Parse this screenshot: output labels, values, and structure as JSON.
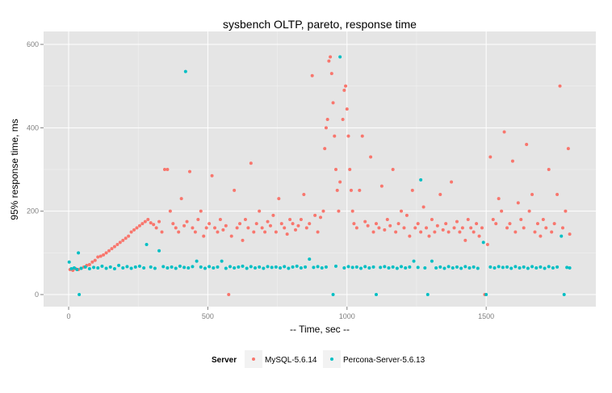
{
  "chart_data": {
    "type": "scatter",
    "title": "sysbench OLTP, pareto, response time",
    "xlabel": "-- Time, sec --",
    "ylabel": "95% response time, ms",
    "xlim": [
      -90,
      1894
    ],
    "ylim": [
      -29,
      631
    ],
    "xticks": [
      0,
      500,
      1000,
      1500
    ],
    "yticks": [
      0,
      200,
      400,
      600
    ],
    "grid": true,
    "legend": {
      "title": "Server",
      "position": "bottom"
    },
    "series": [
      {
        "name": "MySQL-5.6.14",
        "color": "#F8766D",
        "points": [
          [
            5,
            60
          ],
          [
            15,
            58
          ],
          [
            25,
            62
          ],
          [
            35,
            60
          ],
          [
            45,
            63
          ],
          [
            55,
            66
          ],
          [
            65,
            70
          ],
          [
            75,
            72
          ],
          [
            85,
            78
          ],
          [
            95,
            82
          ],
          [
            105,
            90
          ],
          [
            115,
            92
          ],
          [
            125,
            95
          ],
          [
            135,
            100
          ],
          [
            145,
            105
          ],
          [
            155,
            110
          ],
          [
            165,
            115
          ],
          [
            175,
            120
          ],
          [
            185,
            125
          ],
          [
            195,
            130
          ],
          [
            205,
            135
          ],
          [
            215,
            140
          ],
          [
            225,
            150
          ],
          [
            235,
            155
          ],
          [
            245,
            160
          ],
          [
            255,
            165
          ],
          [
            265,
            170
          ],
          [
            275,
            175
          ],
          [
            285,
            180
          ],
          [
            295,
            172
          ],
          [
            305,
            168
          ],
          [
            315,
            160
          ],
          [
            325,
            175
          ],
          [
            335,
            150
          ],
          [
            345,
            300
          ],
          [
            355,
            300
          ],
          [
            365,
            200
          ],
          [
            375,
            170
          ],
          [
            385,
            160
          ],
          [
            395,
            150
          ],
          [
            405,
            230
          ],
          [
            415,
            165
          ],
          [
            425,
            175
          ],
          [
            435,
            295
          ],
          [
            445,
            160
          ],
          [
            455,
            150
          ],
          [
            465,
            180
          ],
          [
            475,
            200
          ],
          [
            485,
            140
          ],
          [
            495,
            160
          ],
          [
            505,
            170
          ],
          [
            515,
            285
          ],
          [
            525,
            160
          ],
          [
            535,
            150
          ],
          [
            545,
            180
          ],
          [
            555,
            155
          ],
          [
            565,
            165
          ],
          [
            575,
            0
          ],
          [
            585,
            140
          ],
          [
            595,
            250
          ],
          [
            605,
            160
          ],
          [
            615,
            170
          ],
          [
            625,
            130
          ],
          [
            635,
            180
          ],
          [
            645,
            160
          ],
          [
            655,
            315
          ],
          [
            665,
            150
          ],
          [
            675,
            170
          ],
          [
            685,
            200
          ],
          [
            695,
            160
          ],
          [
            705,
            150
          ],
          [
            715,
            175
          ],
          [
            725,
            165
          ],
          [
            735,
            190
          ],
          [
            745,
            150
          ],
          [
            755,
            230
          ],
          [
            765,
            170
          ],
          [
            775,
            160
          ],
          [
            785,
            145
          ],
          [
            795,
            180
          ],
          [
            805,
            170
          ],
          [
            815,
            155
          ],
          [
            825,
            165
          ],
          [
            835,
            180
          ],
          [
            845,
            240
          ],
          [
            855,
            160
          ],
          [
            865,
            170
          ],
          [
            875,
            525
          ],
          [
            885,
            190
          ],
          [
            895,
            150
          ],
          [
            905,
            185
          ],
          [
            915,
            200
          ],
          [
            920,
            350
          ],
          [
            925,
            400
          ],
          [
            930,
            420
          ],
          [
            935,
            560
          ],
          [
            940,
            570
          ],
          [
            945,
            530
          ],
          [
            950,
            460
          ],
          [
            955,
            380
          ],
          [
            960,
            300
          ],
          [
            965,
            250
          ],
          [
            970,
            200
          ],
          [
            975,
            270
          ],
          [
            985,
            420
          ],
          [
            990,
            490
          ],
          [
            995,
            500
          ],
          [
            1000,
            445
          ],
          [
            1005,
            380
          ],
          [
            1010,
            300
          ],
          [
            1015,
            250
          ],
          [
            1020,
            200
          ],
          [
            1025,
            170
          ],
          [
            1035,
            160
          ],
          [
            1045,
            250
          ],
          [
            1055,
            380
          ],
          [
            1065,
            175
          ],
          [
            1075,
            165
          ],
          [
            1085,
            330
          ],
          [
            1095,
            150
          ],
          [
            1105,
            170
          ],
          [
            1115,
            160
          ],
          [
            1125,
            260
          ],
          [
            1135,
            155
          ],
          [
            1145,
            180
          ],
          [
            1155,
            165
          ],
          [
            1165,
            300
          ],
          [
            1175,
            150
          ],
          [
            1185,
            170
          ],
          [
            1195,
            200
          ],
          [
            1205,
            160
          ],
          [
            1215,
            190
          ],
          [
            1225,
            140
          ],
          [
            1235,
            250
          ],
          [
            1245,
            160
          ],
          [
            1255,
            170
          ],
          [
            1265,
            150
          ],
          [
            1275,
            210
          ],
          [
            1285,
            160
          ],
          [
            1295,
            140
          ],
          [
            1305,
            180
          ],
          [
            1315,
            150
          ],
          [
            1325,
            165
          ],
          [
            1335,
            240
          ],
          [
            1345,
            155
          ],
          [
            1355,
            170
          ],
          [
            1365,
            150
          ],
          [
            1375,
            270
          ],
          [
            1385,
            160
          ],
          [
            1395,
            175
          ],
          [
            1405,
            150
          ],
          [
            1415,
            160
          ],
          [
            1425,
            130
          ],
          [
            1435,
            180
          ],
          [
            1445,
            160
          ],
          [
            1455,
            150
          ],
          [
            1465,
            170
          ],
          [
            1475,
            140
          ],
          [
            1485,
            160
          ],
          [
            1495,
            0
          ],
          [
            1505,
            120
          ],
          [
            1515,
            330
          ],
          [
            1525,
            180
          ],
          [
            1535,
            170
          ],
          [
            1545,
            230
          ],
          [
            1555,
            200
          ],
          [
            1565,
            390
          ],
          [
            1575,
            160
          ],
          [
            1585,
            170
          ],
          [
            1595,
            320
          ],
          [
            1605,
            150
          ],
          [
            1615,
            220
          ],
          [
            1625,
            180
          ],
          [
            1635,
            160
          ],
          [
            1645,
            360
          ],
          [
            1655,
            200
          ],
          [
            1665,
            240
          ],
          [
            1675,
            150
          ],
          [
            1685,
            170
          ],
          [
            1695,
            140
          ],
          [
            1705,
            180
          ],
          [
            1715,
            160
          ],
          [
            1725,
            300
          ],
          [
            1735,
            150
          ],
          [
            1745,
            170
          ],
          [
            1755,
            240
          ],
          [
            1765,
            500
          ],
          [
            1775,
            160
          ],
          [
            1785,
            200
          ],
          [
            1795,
            350
          ],
          [
            1800,
            145
          ]
        ]
      },
      {
        "name": "Percona-Server-5.6.13",
        "color": "#00BFC4",
        "points": [
          [
            2,
            78
          ],
          [
            10,
            62
          ],
          [
            20,
            64
          ],
          [
            30,
            60
          ],
          [
            35,
            100
          ],
          [
            38,
            0
          ],
          [
            45,
            63
          ],
          [
            60,
            66
          ],
          [
            75,
            62
          ],
          [
            90,
            65
          ],
          [
            105,
            64
          ],
          [
            120,
            68
          ],
          [
            135,
            63
          ],
          [
            150,
            66
          ],
          [
            165,
            62
          ],
          [
            180,
            70
          ],
          [
            195,
            64
          ],
          [
            210,
            67
          ],
          [
            225,
            63
          ],
          [
            240,
            66
          ],
          [
            255,
            68
          ],
          [
            270,
            64
          ],
          [
            280,
            120
          ],
          [
            295,
            66
          ],
          [
            310,
            63
          ],
          [
            325,
            105
          ],
          [
            340,
            67
          ],
          [
            355,
            64
          ],
          [
            370,
            66
          ],
          [
            385,
            63
          ],
          [
            400,
            68
          ],
          [
            415,
            65
          ],
          [
            420,
            535
          ],
          [
            430,
            64
          ],
          [
            445,
            67
          ],
          [
            460,
            80
          ],
          [
            475,
            66
          ],
          [
            490,
            63
          ],
          [
            505,
            67
          ],
          [
            520,
            64
          ],
          [
            535,
            66
          ],
          [
            550,
            80
          ],
          [
            565,
            63
          ],
          [
            580,
            67
          ],
          [
            595,
            64
          ],
          [
            610,
            66
          ],
          [
            625,
            68
          ],
          [
            640,
            63
          ],
          [
            655,
            67
          ],
          [
            670,
            64
          ],
          [
            685,
            66
          ],
          [
            700,
            63
          ],
          [
            715,
            67
          ],
          [
            730,
            65
          ],
          [
            745,
            66
          ],
          [
            760,
            64
          ],
          [
            775,
            67
          ],
          [
            790,
            63
          ],
          [
            805,
            66
          ],
          [
            820,
            68
          ],
          [
            835,
            64
          ],
          [
            850,
            66
          ],
          [
            865,
            85
          ],
          [
            880,
            65
          ],
          [
            895,
            67
          ],
          [
            910,
            64
          ],
          [
            925,
            66
          ],
          [
            950,
            0
          ],
          [
            960,
            68
          ],
          [
            975,
            570
          ],
          [
            990,
            64
          ],
          [
            1005,
            67
          ],
          [
            1020,
            65
          ],
          [
            1035,
            66
          ],
          [
            1050,
            63
          ],
          [
            1065,
            67
          ],
          [
            1080,
            64
          ],
          [
            1095,
            66
          ],
          [
            1105,
            0
          ],
          [
            1120,
            65
          ],
          [
            1135,
            67
          ],
          [
            1150,
            64
          ],
          [
            1165,
            66
          ],
          [
            1180,
            63
          ],
          [
            1195,
            67
          ],
          [
            1210,
            64
          ],
          [
            1225,
            66
          ],
          [
            1240,
            80
          ],
          [
            1255,
            65
          ],
          [
            1265,
            275
          ],
          [
            1280,
            64
          ],
          [
            1290,
            0
          ],
          [
            1305,
            80
          ],
          [
            1320,
            64
          ],
          [
            1335,
            66
          ],
          [
            1350,
            63
          ],
          [
            1365,
            67
          ],
          [
            1380,
            64
          ],
          [
            1395,
            66
          ],
          [
            1410,
            63
          ],
          [
            1425,
            67
          ],
          [
            1440,
            64
          ],
          [
            1455,
            66
          ],
          [
            1470,
            63
          ],
          [
            1490,
            125
          ],
          [
            1500,
            0
          ],
          [
            1515,
            66
          ],
          [
            1530,
            64
          ],
          [
            1545,
            67
          ],
          [
            1560,
            65
          ],
          [
            1575,
            66
          ],
          [
            1590,
            63
          ],
          [
            1605,
            67
          ],
          [
            1620,
            64
          ],
          [
            1635,
            66
          ],
          [
            1650,
            63
          ],
          [
            1665,
            67
          ],
          [
            1680,
            64
          ],
          [
            1695,
            66
          ],
          [
            1710,
            63
          ],
          [
            1725,
            67
          ],
          [
            1740,
            64
          ],
          [
            1755,
            66
          ],
          [
            1770,
            140
          ],
          [
            1780,
            0
          ],
          [
            1790,
            65
          ],
          [
            1800,
            64
          ]
        ]
      }
    ]
  }
}
